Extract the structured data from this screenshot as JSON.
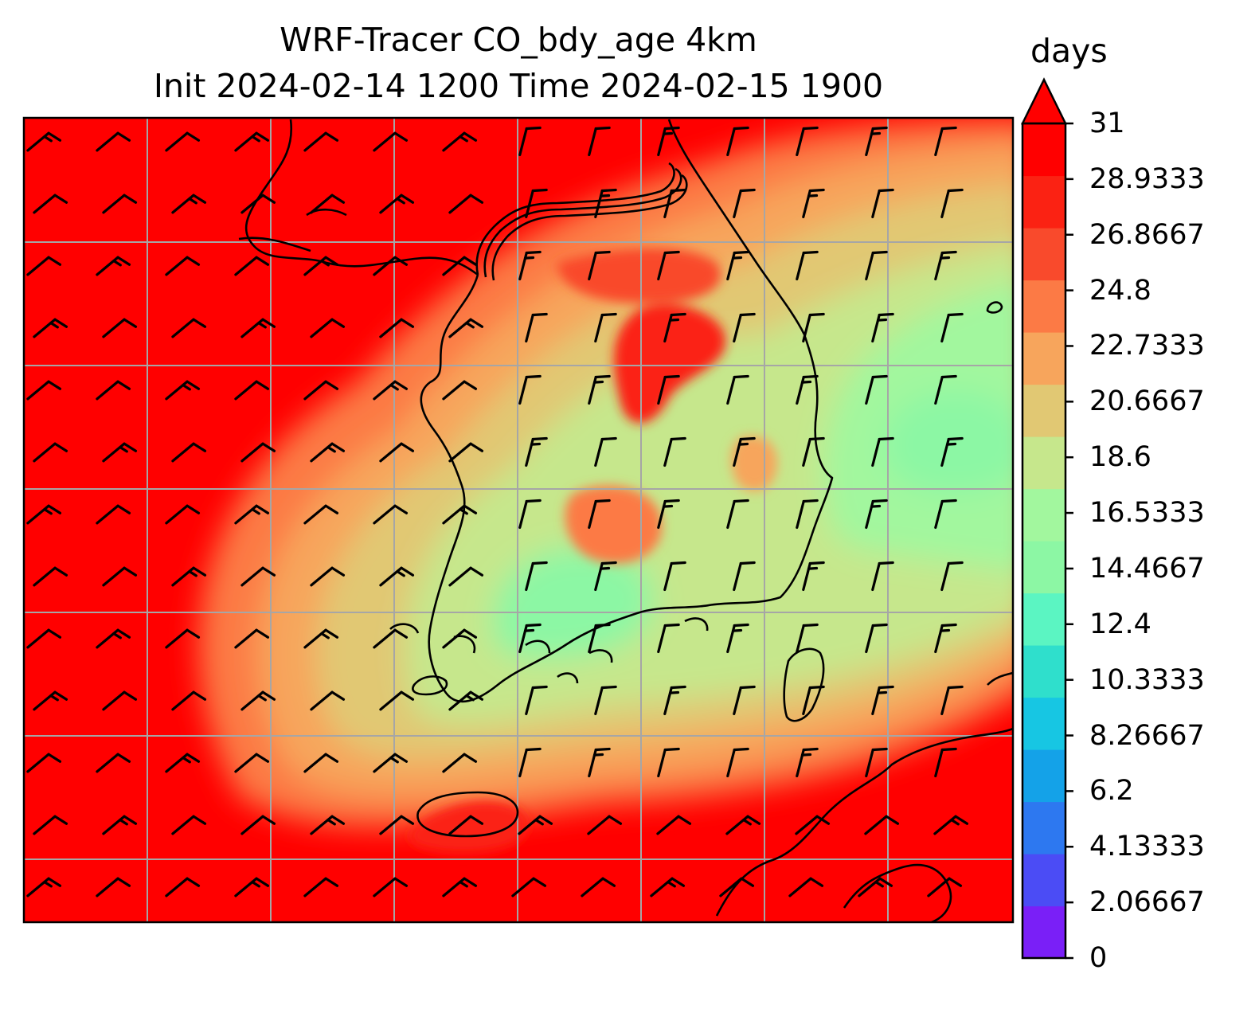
{
  "title": {
    "line1": "WRF-Tracer CO_bdy_age 4km",
    "line2": "Init 2024-02-14 1200 Time 2024-02-15 1900"
  },
  "colorbar": {
    "label": "days",
    "extend": "max",
    "ticks": [
      "0",
      "2.06667",
      "4.13333",
      "6.2",
      "8.26667",
      "10.3333",
      "12.4",
      "14.4667",
      "16.5333",
      "18.6",
      "20.6667",
      "22.7333",
      "24.8",
      "26.8667",
      "28.9333",
      "31"
    ],
    "colors": [
      "#7a1ff7",
      "#4b4cf5",
      "#2d78f0",
      "#14a2e8",
      "#17c6e3",
      "#2fdfcc",
      "#5bf5c2",
      "#8cf7a4",
      "#a2f79e",
      "#c6e78c",
      "#e1c873",
      "#f7a55c",
      "#fc7a45",
      "#f94a2c",
      "#fb2213",
      "#ff0000"
    ]
  },
  "map": {
    "field": "CO_bdy_age",
    "units": "days",
    "gridlines": true,
    "wind_barbs": true,
    "colors": {
      "frame": "#000000",
      "grid": "#a6a6a6",
      "coastline": "#000000",
      "barb": "#000000"
    }
  }
}
